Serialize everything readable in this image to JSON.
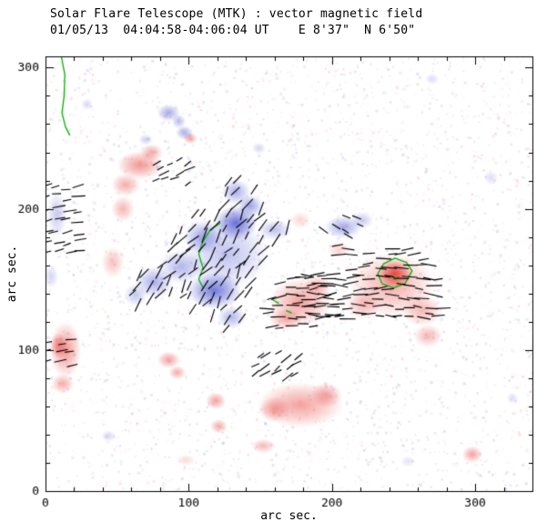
{
  "chart_data": {
    "type": "heatmap",
    "title": "Solar Flare Telescope (MTK) : vector magnetic field",
    "subtitle": "01/05/13  04:04:58-04:06:04 UT    E 8'37\"  N 6'50\"",
    "xlabel": "arc sec.",
    "ylabel": "arc sec.",
    "xlim": [
      0,
      340
    ],
    "ylim": [
      0,
      308
    ],
    "xticks": [
      0,
      100,
      200,
      300
    ],
    "yticks": [
      0,
      100,
      200,
      300
    ],
    "minor_tick_step": 20,
    "legend": "none",
    "grid": false,
    "colors": {
      "positive": "#e5302a",
      "negative": "#3741cd",
      "positive_rgb": "229,48,40",
      "negative_rgb": "55,65,205",
      "contour": "#00b200",
      "vector": "#000000",
      "frame": "#000000"
    },
    "noise": {
      "seed": 42,
      "count": 3200,
      "alpha": 0.11
    },
    "blobs": [
      {
        "x": 66,
        "y": 231,
        "rx": 16,
        "ry": 10,
        "a": 0.5,
        "p": "+"
      },
      {
        "x": 56,
        "y": 217,
        "rx": 10,
        "ry": 8,
        "a": 0.4,
        "p": "+"
      },
      {
        "x": 54,
        "y": 200,
        "rx": 8,
        "ry": 9,
        "a": 0.35,
        "p": "+"
      },
      {
        "x": 74,
        "y": 240,
        "rx": 8,
        "ry": 6,
        "a": 0.4,
        "p": "+"
      },
      {
        "x": 101,
        "y": 250,
        "rx": 5,
        "ry": 4,
        "a": 0.45,
        "p": "+"
      },
      {
        "x": 47,
        "y": 162,
        "rx": 8,
        "ry": 11,
        "a": 0.3,
        "p": "+"
      },
      {
        "x": 14,
        "y": 100,
        "rx": 11,
        "ry": 20,
        "a": 0.5,
        "p": "+"
      },
      {
        "x": 9,
        "y": 103,
        "rx": 6,
        "ry": 9,
        "a": 0.5,
        "p": "+"
      },
      {
        "x": 12,
        "y": 76,
        "rx": 8,
        "ry": 7,
        "a": 0.4,
        "p": "+"
      },
      {
        "x": 86,
        "y": 93,
        "rx": 8,
        "ry": 6,
        "a": 0.45,
        "p": "+"
      },
      {
        "x": 92,
        "y": 84,
        "rx": 6,
        "ry": 5,
        "a": 0.4,
        "p": "+"
      },
      {
        "x": 119,
        "y": 64,
        "rx": 7,
        "ry": 6,
        "a": 0.45,
        "p": "+"
      },
      {
        "x": 121,
        "y": 46,
        "rx": 6,
        "ry": 5,
        "a": 0.4,
        "p": "+"
      },
      {
        "x": 178,
        "y": 61,
        "rx": 30,
        "ry": 16,
        "a": 0.45,
        "p": "+"
      },
      {
        "x": 160,
        "y": 58,
        "rx": 11,
        "ry": 9,
        "a": 0.4,
        "p": "+"
      },
      {
        "x": 196,
        "y": 68,
        "rx": 11,
        "ry": 9,
        "a": 0.4,
        "p": "+"
      },
      {
        "x": 152,
        "y": 32,
        "rx": 8,
        "ry": 5,
        "a": 0.35,
        "p": "+"
      },
      {
        "x": 98,
        "y": 22,
        "rx": 7,
        "ry": 4,
        "a": 0.18,
        "p": "+"
      },
      {
        "x": 178,
        "y": 134,
        "rx": 22,
        "ry": 17,
        "a": 0.45,
        "p": "+"
      },
      {
        "x": 168,
        "y": 122,
        "rx": 12,
        "ry": 8,
        "a": 0.4,
        "p": "+"
      },
      {
        "x": 190,
        "y": 145,
        "rx": 10,
        "ry": 8,
        "a": 0.35,
        "p": "+"
      },
      {
        "x": 244,
        "y": 154,
        "rx": 12,
        "ry": 10,
        "a": 0.85,
        "p": "+"
      },
      {
        "x": 242,
        "y": 146,
        "rx": 30,
        "ry": 23,
        "a": 0.4,
        "p": "+"
      },
      {
        "x": 263,
        "y": 128,
        "rx": 14,
        "ry": 11,
        "a": 0.35,
        "p": "+"
      },
      {
        "x": 267,
        "y": 110,
        "rx": 10,
        "ry": 8,
        "a": 0.35,
        "p": "+"
      },
      {
        "x": 222,
        "y": 132,
        "rx": 12,
        "ry": 10,
        "a": 0.35,
        "p": "+"
      },
      {
        "x": 205,
        "y": 171,
        "rx": 8,
        "ry": 6,
        "a": 0.22,
        "p": "+"
      },
      {
        "x": 178,
        "y": 192,
        "rx": 7,
        "ry": 6,
        "a": 0.2,
        "p": "+"
      },
      {
        "x": 298,
        "y": 26,
        "rx": 7,
        "ry": 6,
        "a": 0.45,
        "p": "+"
      },
      {
        "x": 133,
        "y": 190,
        "rx": 15,
        "ry": 12,
        "a": 0.75,
        "p": "-"
      },
      {
        "x": 118,
        "y": 142,
        "rx": 19,
        "ry": 13,
        "a": 0.7,
        "p": "-"
      },
      {
        "x": 127,
        "y": 168,
        "rx": 29,
        "ry": 25,
        "a": 0.32,
        "p": "-"
      },
      {
        "x": 110,
        "y": 180,
        "rx": 14,
        "ry": 12,
        "a": 0.45,
        "p": "-"
      },
      {
        "x": 95,
        "y": 159,
        "rx": 16,
        "ry": 12,
        "a": 0.38,
        "p": "-"
      },
      {
        "x": 76,
        "y": 148,
        "rx": 13,
        "ry": 11,
        "a": 0.42,
        "p": "-"
      },
      {
        "x": 63,
        "y": 139,
        "rx": 8,
        "ry": 8,
        "a": 0.3,
        "p": "-"
      },
      {
        "x": 133,
        "y": 212,
        "rx": 10,
        "ry": 9,
        "a": 0.42,
        "p": "-"
      },
      {
        "x": 143,
        "y": 202,
        "rx": 9,
        "ry": 8,
        "a": 0.48,
        "p": "-"
      },
      {
        "x": 160,
        "y": 185,
        "rx": 12,
        "ry": 7,
        "a": 0.32,
        "p": "-"
      },
      {
        "x": 130,
        "y": 123,
        "rx": 10,
        "ry": 8,
        "a": 0.38,
        "p": "-"
      },
      {
        "x": 86,
        "y": 268,
        "rx": 8,
        "ry": 6,
        "a": 0.45,
        "p": "-"
      },
      {
        "x": 97,
        "y": 254,
        "rx": 6,
        "ry": 5,
        "a": 0.42,
        "p": "-"
      },
      {
        "x": 93,
        "y": 262,
        "rx": 5,
        "ry": 5,
        "a": 0.35,
        "p": "-"
      },
      {
        "x": 70,
        "y": 249,
        "rx": 5,
        "ry": 4,
        "a": 0.25,
        "p": "-"
      },
      {
        "x": 208,
        "y": 187,
        "rx": 13,
        "ry": 8,
        "a": 0.45,
        "p": "-"
      },
      {
        "x": 221,
        "y": 192,
        "rx": 8,
        "ry": 6,
        "a": 0.28,
        "p": "-"
      },
      {
        "x": 8,
        "y": 196,
        "rx": 7,
        "ry": 16,
        "a": 0.28,
        "p": "-"
      },
      {
        "x": 4,
        "y": 152,
        "rx": 5,
        "ry": 8,
        "a": 0.22,
        "p": "-"
      },
      {
        "x": 29,
        "y": 274,
        "rx": 4,
        "ry": 4,
        "a": 0.22,
        "p": "-"
      },
      {
        "x": 149,
        "y": 243,
        "rx": 5,
        "ry": 4,
        "a": 0.22,
        "p": "-"
      },
      {
        "x": 270,
        "y": 292,
        "rx": 5,
        "ry": 4,
        "a": 0.18,
        "p": "-"
      },
      {
        "x": 311,
        "y": 222,
        "rx": 5,
        "ry": 5,
        "a": 0.18,
        "p": "-"
      },
      {
        "x": 44,
        "y": 39,
        "rx": 5,
        "ry": 4,
        "a": 0.22,
        "p": "-"
      },
      {
        "x": 253,
        "y": 21,
        "rx": 5,
        "ry": 4,
        "a": 0.15,
        "p": "-"
      },
      {
        "x": 326,
        "y": 66,
        "rx": 4,
        "ry": 4,
        "a": 0.18,
        "p": "-"
      }
    ],
    "vector_clusters": [
      {
        "x0": 55,
        "x1": 175,
        "y0": 115,
        "y1": 224,
        "step": 8,
        "angle": 55,
        "jitter": 22,
        "len": 8,
        "mask": "neg"
      },
      {
        "x0": 185,
        "x1": 276,
        "y0": 124,
        "y1": 180,
        "step": 7,
        "angle": 0,
        "jitter": 14,
        "len": 8,
        "mask": "pos"
      },
      {
        "x0": 150,
        "x1": 202,
        "y0": 110,
        "y1": 154,
        "step": 7,
        "angle": 6,
        "jitter": 12,
        "len": 8,
        "mask": "pos"
      },
      {
        "x0": 0,
        "x1": 26,
        "y0": 168,
        "y1": 216,
        "step": 8,
        "angle": 12,
        "jitter": 10,
        "len": 7,
        "mask": "none"
      },
      {
        "x0": 2,
        "x1": 22,
        "y0": 90,
        "y1": 112,
        "step": 8,
        "angle": 8,
        "jitter": 10,
        "len": 7,
        "mask": "none"
      },
      {
        "x0": 148,
        "x1": 176,
        "y0": 82,
        "y1": 100,
        "step": 7,
        "angle": 35,
        "jitter": 12,
        "len": 7,
        "mask": "none"
      },
      {
        "x0": 78,
        "x1": 100,
        "y0": 220,
        "y1": 236,
        "step": 7,
        "angle": 28,
        "jitter": 12,
        "len": 6,
        "mask": "none"
      },
      {
        "x0": 196,
        "x1": 234,
        "y0": 178,
        "y1": 198,
        "step": 8,
        "angle": -25,
        "jitter": 12,
        "len": 6,
        "mask": "neg"
      }
    ],
    "contours": [
      {
        "closed": false,
        "points": [
          [
            11,
            308
          ],
          [
            13.5,
            295
          ],
          [
            13,
            280
          ],
          [
            11.5,
            268
          ],
          [
            14,
            258
          ],
          [
            17,
            252
          ]
        ]
      },
      {
        "closed": false,
        "points": [
          [
            122,
            190
          ],
          [
            115,
            185
          ],
          [
            110,
            177
          ],
          [
            107,
            168
          ],
          [
            110,
            158
          ],
          [
            107,
            150
          ],
          [
            110,
            144
          ]
        ]
      },
      {
        "closed": true,
        "points": [
          [
            256,
            156
          ],
          [
            252,
            162
          ],
          [
            244,
            165
          ],
          [
            236,
            161
          ],
          [
            232,
            154
          ],
          [
            235,
            147
          ],
          [
            243,
            144
          ],
          [
            251,
            147
          ]
        ]
      },
      {
        "closed": false,
        "points": [
          [
            247,
            152
          ],
          [
            244,
            150
          ],
          [
            241,
            153
          ]
        ]
      },
      {
        "closed": false,
        "points": [
          [
            158,
            136
          ],
          [
            163,
            133
          ]
        ]
      },
      {
        "closed": false,
        "points": [
          [
            168,
            128
          ],
          [
            172,
            126
          ]
        ]
      }
    ]
  }
}
